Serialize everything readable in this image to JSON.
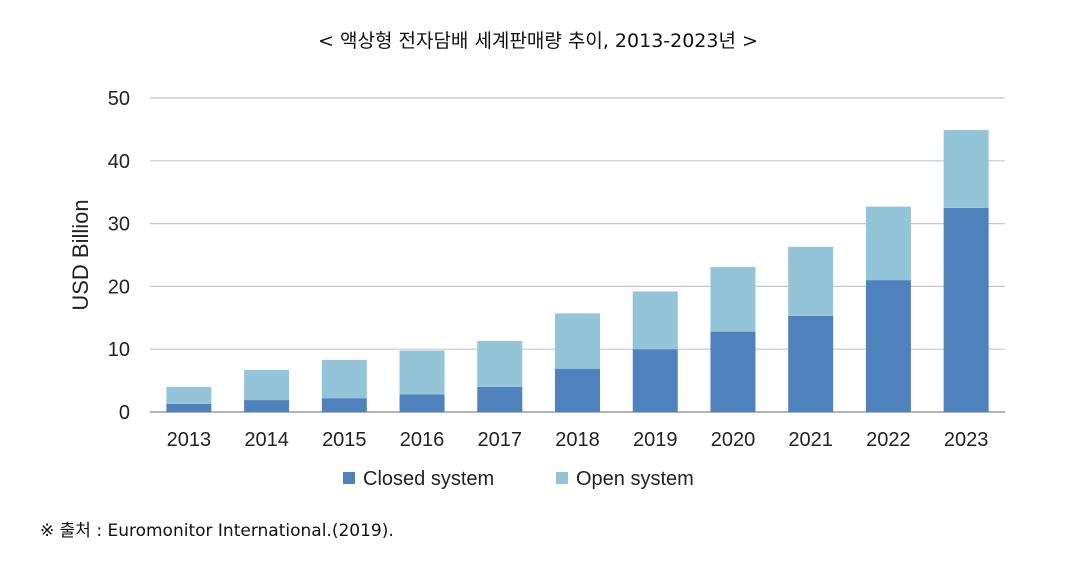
{
  "chart_data": {
    "type": "bar",
    "stacked": true,
    "title": "< 액상형 전자담배 세계판매량 추이, 2013-2023년 >",
    "ylabel": "USD Billion",
    "xlabel": "",
    "ylim": [
      0,
      50
    ],
    "yticks": [
      0,
      10,
      20,
      30,
      40,
      50
    ],
    "grid": true,
    "legend_position": "bottom",
    "categories": [
      "2013",
      "2014",
      "2015",
      "2016",
      "2017",
      "2018",
      "2019",
      "2020",
      "2021",
      "2022",
      "2023"
    ],
    "series": [
      {
        "name": "Closed system",
        "color": "#4f81bd",
        "values": [
          1.3,
          1.9,
          2.2,
          2.8,
          4.0,
          6.9,
          10.0,
          12.8,
          15.3,
          21.0,
          32.5
        ]
      },
      {
        "name": "Open system",
        "color": "#93c4d8",
        "values": [
          2.7,
          4.8,
          6.1,
          7.0,
          7.3,
          8.8,
          9.2,
          10.3,
          11.0,
          11.7,
          12.4
        ]
      }
    ]
  },
  "source": "※ 출처 : Euromonitor International.(2019)."
}
